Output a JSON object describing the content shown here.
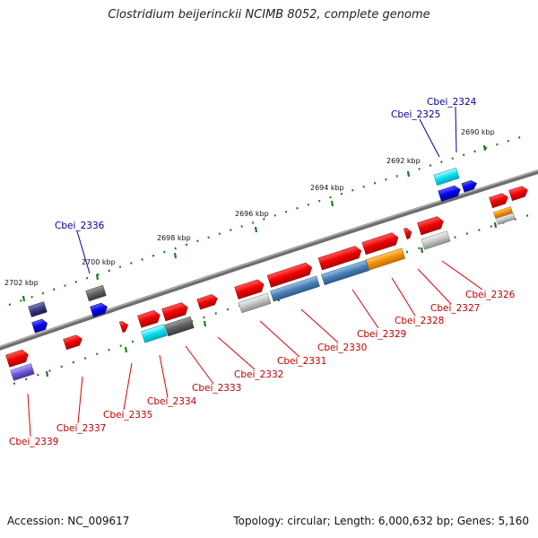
{
  "title": "Clostridium beijerinckii NCIMB 8052, complete genome",
  "footer": {
    "accession": "Accession: NC_009617",
    "summary": "Topology: circular; Length: 6,000,632 bp; Genes: 5,160"
  },
  "kbp_labels": [
    "2690 kbp",
    "2692 kbp",
    "2694 kbp",
    "2696 kbp",
    "2698 kbp",
    "2700 kbp",
    "2702 kbp"
  ],
  "genes_above": [
    "Cbei_2324",
    "Cbei_2325",
    "Cbei_2336"
  ],
  "genes_below": [
    "Cbei_2326",
    "Cbei_2327",
    "Cbei_2328",
    "Cbei_2329",
    "Cbei_2330",
    "Cbei_2331",
    "Cbei_2332",
    "Cbei_2333",
    "Cbei_2334",
    "Cbei_2335",
    "Cbei_2337",
    "Cbei_2339"
  ],
  "colors": {
    "forward_gene": "#ee0000",
    "reverse_gene": "#0000ee",
    "cyan_gene": "#00d8e8",
    "steelblue_gene": "#4a7fb5",
    "orange_gene": "#f59000",
    "gray_gene": "#bdbdbd",
    "darkgray_gene": "#606060",
    "purple_gene": "#6f5bd0",
    "navy_gene": "#3a3a7a",
    "backbone": "#777777",
    "tick": "#1f7a1f"
  }
}
